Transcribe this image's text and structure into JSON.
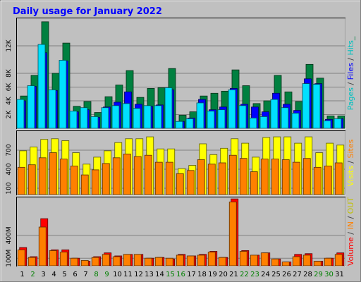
{
  "chart_data": [
    {
      "type": "bar",
      "title": "Daily usage for January 2022",
      "panel": "hits-files-pages",
      "legend_label": "Pages / Files / Hits _",
      "legend_parts": [
        {
          "text": "Pages",
          "color": "#00c0c0"
        },
        {
          "text": " / ",
          "color": "#404040"
        },
        {
          "text": "Files",
          "color": "#0000ff"
        },
        {
          "text": " / ",
          "color": "#404040"
        },
        {
          "text": "Hits",
          "color": "#00c0c0"
        },
        {
          "text": "_",
          "color": "#008040"
        }
      ],
      "ylim": [
        0,
        16000
      ],
      "yticks": [
        "2K",
        "4K",
        "6K",
        "8K",
        "12K"
      ],
      "ytick_values": [
        2000,
        4000,
        6000,
        8000,
        12000
      ],
      "series": [
        {
          "name": "Hits",
          "color": "#008040",
          "values": [
            4700,
            7700,
            15500,
            8000,
            12400,
            3200,
            3900,
            2300,
            4600,
            6300,
            8400,
            4500,
            5800,
            5900,
            8700,
            1900,
            2400,
            4700,
            5100,
            5400,
            8500,
            6200,
            3600,
            4000,
            7700,
            5300,
            3900,
            9300,
            7300,
            1800,
            1800
          ]
        },
        {
          "name": "Files",
          "color": "#0000ff",
          "values": [
            4000,
            6100,
            11000,
            5500,
            9800,
            2400,
            2700,
            1600,
            3100,
            3800,
            5300,
            3500,
            3200,
            3400,
            5600,
            1000,
            1500,
            4200,
            2700,
            3100,
            5800,
            3500,
            3100,
            2400,
            5100,
            3500,
            2600,
            7200,
            6500,
            1300,
            1400
          ]
        },
        {
          "name": "Pages",
          "color": "#00e0ff",
          "values": [
            4200,
            6200,
            12200,
            5600,
            9900,
            2500,
            3000,
            1700,
            3000,
            3300,
            3600,
            2900,
            3300,
            3300,
            5900,
            1000,
            1400,
            3700,
            2500,
            2700,
            5600,
            3300,
            1500,
            1700,
            4200,
            3000,
            2200,
            6500,
            6400,
            1100,
            1400
          ]
        }
      ]
    },
    {
      "type": "bar",
      "panel": "visits-sites",
      "legend_label": "Visits / Sites",
      "legend_parts": [
        {
          "text": "Visits",
          "color": "#ffff00"
        },
        {
          "text": " / ",
          "color": "#404040"
        },
        {
          "text": "Sites",
          "color": "#ff8000"
        }
      ],
      "ylim": [
        0,
        1000
      ],
      "yticks": [
        "100",
        "400",
        "700"
      ],
      "ytick_values": [
        100,
        400,
        700
      ],
      "series": [
        {
          "name": "Visits",
          "color": "#ffff00",
          "values": [
            690,
            750,
            870,
            880,
            850,
            660,
            480,
            590,
            690,
            820,
            880,
            880,
            910,
            720,
            720,
            410,
            460,
            800,
            630,
            730,
            880,
            810,
            590,
            900,
            910,
            910,
            810,
            910,
            660,
            810,
            780
          ]
        },
        {
          "name": "Sites",
          "color": "#ff8000",
          "values": [
            430,
            470,
            580,
            660,
            560,
            450,
            310,
            390,
            490,
            580,
            640,
            600,
            620,
            510,
            510,
            330,
            380,
            550,
            480,
            500,
            620,
            570,
            360,
            560,
            560,
            550,
            510,
            570,
            430,
            450,
            500
          ]
        }
      ]
    },
    {
      "type": "bar",
      "panel": "volume",
      "legend_label": "Volume / IN / OUT",
      "legend_parts": [
        {
          "text": "Volume",
          "color": "#ff0000"
        },
        {
          "text": " / ",
          "color": "#404040"
        },
        {
          "text": "IN",
          "color": "#ff8000"
        },
        {
          "text": " / ",
          "color": "#404040"
        },
        {
          "text": "OUT",
          "color": "#c0c000"
        }
      ],
      "ylim": [
        0,
        900
      ],
      "yticks": [
        "100M",
        "400M"
      ],
      "ytick_values": [
        100,
        400
      ],
      "categories": [
        "1",
        "2",
        "3",
        "4",
        "5",
        "6",
        "7",
        "8",
        "9",
        "10",
        "11",
        "12",
        "13",
        "14",
        "15",
        "16",
        "17",
        "18",
        "19",
        "20",
        "21",
        "22",
        "23",
        "24",
        "25",
        "26",
        "27",
        "28",
        "29",
        "30",
        "31"
      ],
      "weekend_days": [
        "2",
        "8",
        "9",
        "15",
        "16",
        "22",
        "23",
        "29",
        "30"
      ],
      "series": [
        {
          "name": "Volume",
          "color": "#ff0000",
          "values": [
            240,
            120,
            620,
            210,
            210,
            100,
            60,
            120,
            170,
            130,
            150,
            150,
            100,
            110,
            90,
            150,
            130,
            150,
            190,
            110,
            880,
            200,
            140,
            170,
            90,
            50,
            150,
            160,
            60,
            100,
            170
          ]
        },
        {
          "name": "IN",
          "color": "#ff8000",
          "values": [
            210,
            110,
            510,
            200,
            180,
            100,
            70,
            110,
            150,
            120,
            150,
            150,
            100,
            110,
            100,
            140,
            130,
            140,
            180,
            110,
            840,
            190,
            140,
            170,
            90,
            50,
            120,
            140,
            60,
            100,
            150
          ]
        }
      ]
    }
  ]
}
